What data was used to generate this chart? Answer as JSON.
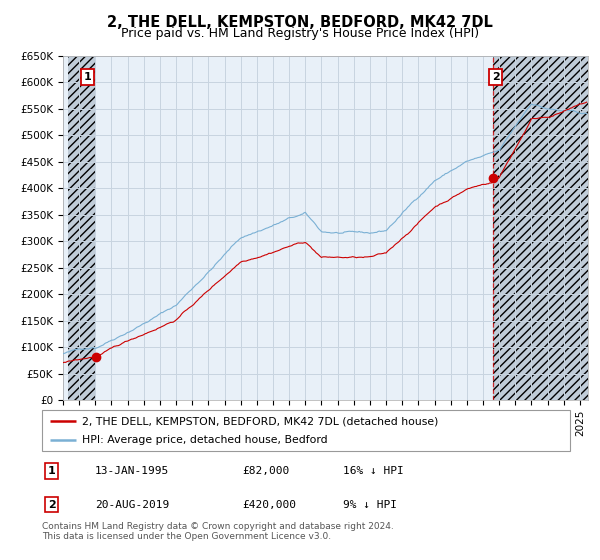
{
  "title": "2, THE DELL, KEMPSTON, BEDFORD, MK42 7DL",
  "subtitle": "Price paid vs. HM Land Registry's House Price Index (HPI)",
  "ylim": [
    0,
    650000
  ],
  "yticks": [
    0,
    50000,
    100000,
    150000,
    200000,
    250000,
    300000,
    350000,
    400000,
    450000,
    500000,
    550000,
    600000,
    650000
  ],
  "ytick_labels": [
    "£0",
    "£50K",
    "£100K",
    "£150K",
    "£200K",
    "£250K",
    "£300K",
    "£350K",
    "£400K",
    "£450K",
    "£500K",
    "£550K",
    "£600K",
    "£650K"
  ],
  "xlim_start": 1993.3,
  "xlim_end": 2025.5,
  "transaction1_date": 1995.04,
  "transaction1_price": 82000,
  "transaction1_label": "1",
  "transaction2_date": 2019.64,
  "transaction2_price": 420000,
  "transaction2_label": "2",
  "red_color": "#cc0000",
  "blue_color": "#7ab0d4",
  "grid_color": "#c8d4e0",
  "bg_color": "#e8f0f8",
  "hatch_color": "#c0ccd8",
  "legend_line1": "2, THE DELL, KEMPSTON, BEDFORD, MK42 7DL (detached house)",
  "legend_line2": "HPI: Average price, detached house, Bedford",
  "table_row1": [
    "1",
    "13-JAN-1995",
    "£82,000",
    "16% ↓ HPI"
  ],
  "table_row2": [
    "2",
    "20-AUG-2019",
    "£420,000",
    "9% ↓ HPI"
  ],
  "footer": "Contains HM Land Registry data © Crown copyright and database right 2024.\nThis data is licensed under the Open Government Licence v3.0.",
  "title_fontsize": 10.5,
  "subtitle_fontsize": 9,
  "tick_fontsize": 7.5
}
